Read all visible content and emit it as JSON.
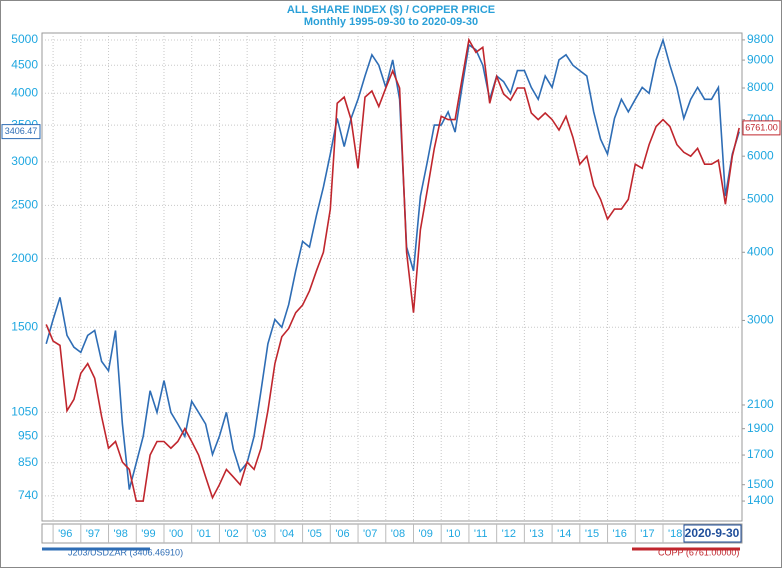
{
  "chart_data": {
    "type": "line",
    "title": "ALL SHARE INDEX ($) / COPPER PRICE",
    "subtitle": "Monthly  1995-09-30 to 2020-09-30",
    "end_date_label": "2020-9-30",
    "log_scale": true,
    "grid": true,
    "xlim": [
      1995.6,
      2020.85
    ],
    "xticks": [
      {
        "value": 1996,
        "label": "'96"
      },
      {
        "value": 1997,
        "label": "'97"
      },
      {
        "value": 1998,
        "label": "'98"
      },
      {
        "value": 1999,
        "label": "'99"
      },
      {
        "value": 2000,
        "label": "'00"
      },
      {
        "value": 2001,
        "label": "'01"
      },
      {
        "value": 2002,
        "label": "'02"
      },
      {
        "value": 2003,
        "label": "'03"
      },
      {
        "value": 2004,
        "label": "'04"
      },
      {
        "value": 2005,
        "label": "'05"
      },
      {
        "value": 2006,
        "label": "'06"
      },
      {
        "value": 2007,
        "label": "'07"
      },
      {
        "value": 2008,
        "label": "'08"
      },
      {
        "value": 2009,
        "label": "'09"
      },
      {
        "value": 2010,
        "label": "'10"
      },
      {
        "value": 2011,
        "label": "'11"
      },
      {
        "value": 2012,
        "label": "'12"
      },
      {
        "value": 2013,
        "label": "'13"
      },
      {
        "value": 2014,
        "label": "'14"
      },
      {
        "value": 2015,
        "label": "'15"
      },
      {
        "value": 2016,
        "label": "'16"
      },
      {
        "value": 2017,
        "label": "'17"
      },
      {
        "value": 2018,
        "label": "'18"
      }
    ],
    "ylim": [
      666,
      5150
    ],
    "yticks": [
      740,
      850,
      950,
      1050,
      1500,
      2000,
      2500,
      3000,
      3500,
      4000,
      4500,
      5000
    ],
    "y2lim": [
      1287,
      10090
    ],
    "y2ticks": [
      1400,
      1500,
      1700,
      1900,
      2100,
      3000,
      4000,
      5000,
      6000,
      7000,
      8000,
      9000,
      9800
    ],
    "x": [
      1995.75,
      1996,
      1996.25,
      1996.5,
      1996.75,
      1997,
      1997.25,
      1997.5,
      1997.75,
      1998,
      1998.25,
      1998.5,
      1998.75,
      1999,
      1999.25,
      1999.5,
      1999.75,
      2000,
      2000.25,
      2000.5,
      2000.75,
      2001,
      2001.25,
      2001.5,
      2001.75,
      2002,
      2002.25,
      2002.5,
      2002.75,
      2003,
      2003.25,
      2003.5,
      2003.75,
      2004,
      2004.25,
      2004.5,
      2004.75,
      2005,
      2005.25,
      2005.5,
      2005.75,
      2006,
      2006.25,
      2006.5,
      2006.75,
      2007,
      2007.25,
      2007.5,
      2007.75,
      2008,
      2008.25,
      2008.5,
      2008.75,
      2009,
      2009.25,
      2009.5,
      2009.75,
      2010,
      2010.25,
      2010.5,
      2010.75,
      2011,
      2011.25,
      2011.5,
      2011.75,
      2012,
      2012.25,
      2012.5,
      2012.75,
      2013,
      2013.25,
      2013.5,
      2013.75,
      2014,
      2014.25,
      2014.5,
      2014.75,
      2015,
      2015.25,
      2015.5,
      2015.75,
      2016,
      2016.25,
      2016.5,
      2016.75,
      2017,
      2017.25,
      2017.5,
      2017.75,
      2018,
      2018.25,
      2018.5,
      2018.75,
      2019,
      2019.25,
      2019.5,
      2019.75,
      2020,
      2020.25,
      2020.5,
      2020.75
    ],
    "series": [
      {
        "name": "J203/USDZAR (3406.46910)",
        "color": "#2e6db5",
        "axis": "y",
        "values": [
          1400,
          1550,
          1700,
          1450,
          1380,
          1350,
          1450,
          1480,
          1300,
          1250,
          1480,
          1000,
          760,
          850,
          950,
          1150,
          1050,
          1200,
          1050,
          1000,
          950,
          1100,
          1050,
          1000,
          880,
          950,
          1050,
          900,
          820,
          850,
          950,
          1150,
          1400,
          1550,
          1500,
          1650,
          1900,
          2150,
          2100,
          2400,
          2700,
          3100,
          3600,
          3200,
          3600,
          3900,
          4300,
          4700,
          4500,
          4100,
          4600,
          3900,
          2100,
          1900,
          2600,
          3000,
          3500,
          3500,
          3700,
          3400,
          4100,
          4900,
          4800,
          4500,
          3900,
          4300,
          4200,
          4000,
          4400,
          4400,
          4100,
          3900,
          4300,
          4100,
          4600,
          4700,
          4500,
          4400,
          4300,
          3700,
          3300,
          3100,
          3600,
          3900,
          3700,
          3900,
          4100,
          4000,
          4600,
          5000,
          4500,
          4100,
          3600,
          3900,
          4100,
          3900,
          3900,
          4100,
          2600,
          3100,
          3406.47
        ]
      },
      {
        "name": "COPP (6761.00000)",
        "color": "#c0262d",
        "axis": "y2",
        "end_label": "6761.00",
        "values": [
          2950,
          2750,
          2700,
          2050,
          2150,
          2400,
          2500,
          2350,
          2000,
          1750,
          1800,
          1650,
          1600,
          1400,
          1400,
          1700,
          1800,
          1800,
          1750,
          1800,
          1900,
          1800,
          1700,
          1550,
          1420,
          1500,
          1600,
          1550,
          1500,
          1650,
          1600,
          1750,
          2050,
          2500,
          2800,
          2900,
          3100,
          3200,
          3400,
          3700,
          4000,
          4800,
          7500,
          7700,
          7000,
          5700,
          7700,
          7900,
          7400,
          8000,
          8600,
          8000,
          4000,
          3100,
          4400,
          5200,
          6200,
          7100,
          7000,
          7000,
          8300,
          9800,
          9300,
          9500,
          7500,
          8400,
          7800,
          7600,
          8000,
          8000,
          7200,
          7000,
          7200,
          7000,
          6700,
          7100,
          6500,
          5800,
          6000,
          5300,
          5000,
          4600,
          4800,
          4800,
          5000,
          5800,
          5700,
          6300,
          6800,
          7000,
          6800,
          6300,
          6100,
          6000,
          6200,
          5800,
          5800,
          5900,
          4900,
          6000,
          6761
        ]
      }
    ]
  }
}
